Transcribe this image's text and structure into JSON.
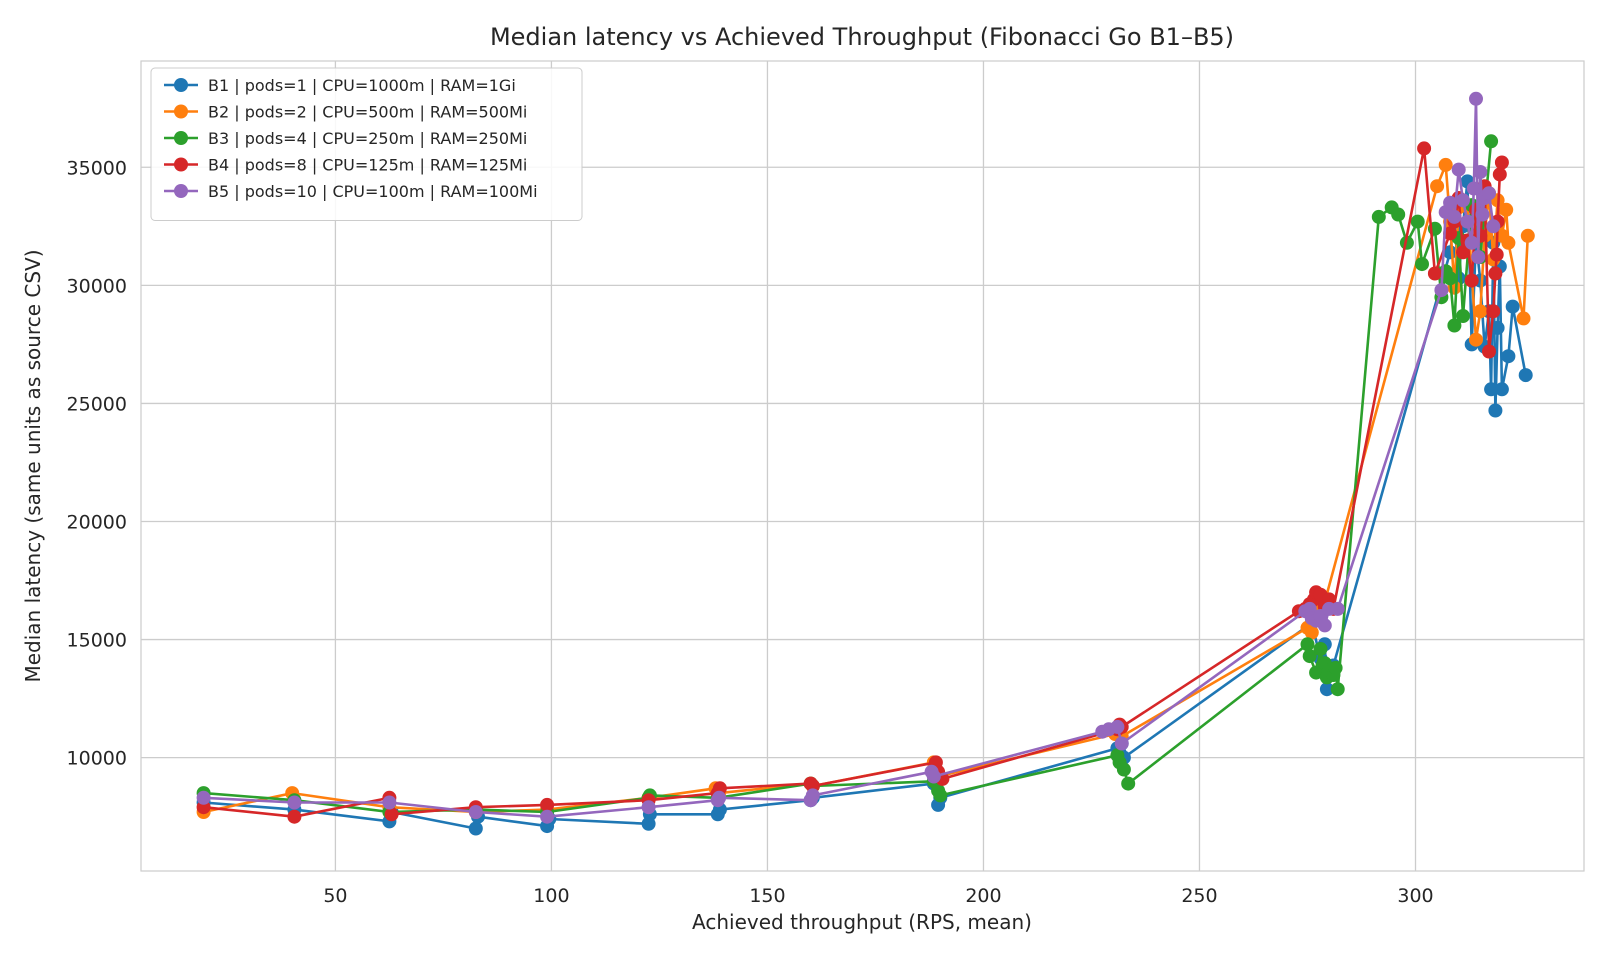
{
  "chart_data": {
    "type": "line",
    "title": "Median latency vs Achieved Throughput (Fibonacci Go B1–B5)",
    "xlabel": "Achieved throughput (RPS, mean)",
    "ylabel": "Median latency (same units as source CSV)",
    "xlim": [
      5,
      339
    ],
    "ylim": [
      5200,
      39500
    ],
    "xticks": [
      50,
      100,
      150,
      200,
      250,
      300
    ],
    "yticks": [
      10000,
      15000,
      20000,
      25000,
      30000,
      35000
    ],
    "grid": true,
    "legend_position": "top-left",
    "series": [
      {
        "name": "B1 | pods=1 | CPU=1000m | RAM=1Gi",
        "color": "#1f77b4",
        "points": [
          [
            19.5,
            8100
          ],
          [
            40.5,
            7800
          ],
          [
            62.5,
            7300
          ],
          [
            63.0,
            7700
          ],
          [
            82.5,
            7000
          ],
          [
            83.0,
            7500
          ],
          [
            99.0,
            7100
          ],
          [
            99.5,
            7400
          ],
          [
            122.5,
            7200
          ],
          [
            122.8,
            7600
          ],
          [
            138.5,
            7600
          ],
          [
            139.0,
            7800
          ],
          [
            160.0,
            8200
          ],
          [
            160.5,
            8300
          ],
          [
            188.5,
            8900
          ],
          [
            189.5,
            8000
          ],
          [
            190.0,
            8300
          ],
          [
            231.0,
            10400
          ],
          [
            231.5,
            10200
          ],
          [
            232.0,
            10600
          ],
          [
            232.5,
            10000
          ],
          [
            276.0,
            15700
          ],
          [
            278.0,
            14200
          ],
          [
            279.0,
            14800
          ],
          [
            279.5,
            12900
          ],
          [
            280.0,
            13500
          ],
          [
            281.0,
            13900
          ],
          [
            308.0,
            31400
          ],
          [
            309.0,
            32800
          ],
          [
            310.0,
            30300
          ],
          [
            311.0,
            32500
          ],
          [
            312.0,
            34400
          ],
          [
            313.0,
            27500
          ],
          [
            314.0,
            31900
          ],
          [
            315.0,
            30200
          ],
          [
            316.0,
            27400
          ],
          [
            317.0,
            28900
          ],
          [
            317.5,
            25600
          ],
          [
            318.0,
            31800
          ],
          [
            318.5,
            24700
          ],
          [
            319.0,
            28200
          ],
          [
            319.5,
            30800
          ],
          [
            320.0,
            25600
          ],
          [
            321.5,
            27000
          ],
          [
            322.5,
            29100
          ],
          [
            325.5,
            26200
          ]
        ]
      },
      {
        "name": "B2 | pods=2 | CPU=500m | RAM=500Mi",
        "color": "#ff7f0e",
        "points": [
          [
            19.5,
            7700
          ],
          [
            40.0,
            8500
          ],
          [
            62.5,
            7900
          ],
          [
            82.5,
            7700
          ],
          [
            99.0,
            7800
          ],
          [
            122.5,
            8300
          ],
          [
            138.0,
            8700
          ],
          [
            138.8,
            8500
          ],
          [
            160.0,
            8900
          ],
          [
            160.5,
            8800
          ],
          [
            188.5,
            9800
          ],
          [
            189.5,
            9200
          ],
          [
            230.5,
            11000
          ],
          [
            231.5,
            11300
          ],
          [
            232.0,
            10900
          ],
          [
            275.0,
            15500
          ],
          [
            276.0,
            15300
          ],
          [
            278.0,
            16200
          ],
          [
            279.0,
            16600
          ],
          [
            305.0,
            34200
          ],
          [
            307.0,
            35100
          ],
          [
            308.0,
            32700
          ],
          [
            309.0,
            29900
          ],
          [
            310.0,
            33300
          ],
          [
            312.0,
            33400
          ],
          [
            314.0,
            27700
          ],
          [
            315.0,
            28900
          ],
          [
            316.0,
            32100
          ],
          [
            317.0,
            33900
          ],
          [
            318.0,
            31100
          ],
          [
            319.0,
            33600
          ],
          [
            320.0,
            32100
          ],
          [
            321.0,
            33200
          ],
          [
            321.5,
            31800
          ],
          [
            325.0,
            28600
          ],
          [
            326.0,
            32100
          ]
        ]
      },
      {
        "name": "B3 | pods=4 | CPU=250m | RAM=250Mi",
        "color": "#2ca02c",
        "points": [
          [
            19.5,
            8500
          ],
          [
            40.5,
            8200
          ],
          [
            62.5,
            7700
          ],
          [
            82.5,
            7800
          ],
          [
            99.0,
            7700
          ],
          [
            122.5,
            8300
          ],
          [
            122.8,
            8400
          ],
          [
            138.5,
            8300
          ],
          [
            160.0,
            8900
          ],
          [
            160.5,
            8800
          ],
          [
            188.5,
            9000
          ],
          [
            189.5,
            8600
          ],
          [
            190.0,
            8400
          ],
          [
            231.0,
            10100
          ],
          [
            231.5,
            9800
          ],
          [
            232.5,
            9500
          ],
          [
            233.5,
            8900
          ],
          [
            275.0,
            14800
          ],
          [
            275.5,
            14300
          ],
          [
            277.0,
            13600
          ],
          [
            278.0,
            14600
          ],
          [
            278.5,
            13900
          ],
          [
            279.0,
            14000
          ],
          [
            279.5,
            13400
          ],
          [
            280.0,
            13700
          ],
          [
            281.0,
            13500
          ],
          [
            281.5,
            13800
          ],
          [
            282.0,
            12900
          ],
          [
            291.5,
            32900
          ],
          [
            294.5,
            33300
          ],
          [
            296.0,
            33000
          ],
          [
            298.0,
            31800
          ],
          [
            300.5,
            32700
          ],
          [
            301.5,
            30900
          ],
          [
            304.5,
            32400
          ],
          [
            306.0,
            29500
          ],
          [
            307.0,
            30600
          ],
          [
            308.0,
            30300
          ],
          [
            309.0,
            28300
          ],
          [
            310.0,
            32000
          ],
          [
            311.0,
            28700
          ],
          [
            313.0,
            33400
          ],
          [
            315.0,
            31200
          ],
          [
            317.5,
            36100
          ]
        ]
      },
      {
        "name": "B4 | pods=8 | CPU=125m | RAM=125Mi",
        "color": "#d62728",
        "points": [
          [
            19.5,
            7900
          ],
          [
            40.5,
            7500
          ],
          [
            62.5,
            8300
          ],
          [
            63.0,
            7600
          ],
          [
            82.5,
            7900
          ],
          [
            99.0,
            8000
          ],
          [
            122.5,
            8200
          ],
          [
            138.5,
            8500
          ],
          [
            139.0,
            8700
          ],
          [
            160.0,
            8900
          ],
          [
            160.5,
            8800
          ],
          [
            189.0,
            9800
          ],
          [
            189.5,
            9400
          ],
          [
            190.5,
            9100
          ],
          [
            231.0,
            11200
          ],
          [
            231.5,
            11400
          ],
          [
            232.0,
            11300
          ],
          [
            273.0,
            16200
          ],
          [
            274.5,
            16300
          ],
          [
            275.5,
            16500
          ],
          [
            276.5,
            16700
          ],
          [
            277.0,
            17000
          ],
          [
            278.0,
            16900
          ],
          [
            279.0,
            16400
          ],
          [
            280.0,
            16700
          ],
          [
            281.0,
            16300
          ],
          [
            302.0,
            35800
          ],
          [
            304.5,
            30500
          ],
          [
            308.0,
            32200
          ],
          [
            309.0,
            32700
          ],
          [
            310.0,
            33700
          ],
          [
            311.0,
            31400
          ],
          [
            312.0,
            31900
          ],
          [
            313.0,
            30200
          ],
          [
            314.0,
            33200
          ],
          [
            315.0,
            32100
          ],
          [
            316.0,
            34200
          ],
          [
            317.0,
            27200
          ],
          [
            318.0,
            28900
          ],
          [
            318.5,
            30500
          ],
          [
            318.8,
            31300
          ],
          [
            319.0,
            32700
          ],
          [
            319.5,
            34700
          ],
          [
            320.0,
            35200
          ]
        ]
      },
      {
        "name": "B5 | pods=10 | CPU=100m | RAM=100Mi",
        "color": "#9467bd",
        "points": [
          [
            19.5,
            8300
          ],
          [
            40.5,
            8100
          ],
          [
            62.5,
            8100
          ],
          [
            82.5,
            7700
          ],
          [
            99.0,
            7500
          ],
          [
            122.5,
            7900
          ],
          [
            138.5,
            8200
          ],
          [
            138.8,
            8300
          ],
          [
            160.0,
            8200
          ],
          [
            160.5,
            8400
          ],
          [
            188.0,
            9400
          ],
          [
            188.5,
            9200
          ],
          [
            227.5,
            11100
          ],
          [
            229.0,
            11200
          ],
          [
            231.0,
            11300
          ],
          [
            232.0,
            10600
          ],
          [
            274.5,
            16200
          ],
          [
            275.5,
            16300
          ],
          [
            276.0,
            15900
          ],
          [
            277.0,
            15800
          ],
          [
            278.0,
            16000
          ],
          [
            279.0,
            15600
          ],
          [
            280.0,
            16300
          ],
          [
            282.0,
            16300
          ],
          [
            306.0,
            29800
          ],
          [
            307.0,
            33100
          ],
          [
            308.0,
            33500
          ],
          [
            309.0,
            32900
          ],
          [
            310.0,
            34900
          ],
          [
            311.0,
            33600
          ],
          [
            312.0,
            32700
          ],
          [
            313.0,
            31800
          ],
          [
            313.5,
            34100
          ],
          [
            314.0,
            37900
          ],
          [
            314.5,
            31200
          ],
          [
            315.0,
            34800
          ],
          [
            315.5,
            33000
          ],
          [
            316.0,
            33700
          ],
          [
            317.0,
            33900
          ],
          [
            318.0,
            32500
          ]
        ]
      }
    ]
  }
}
